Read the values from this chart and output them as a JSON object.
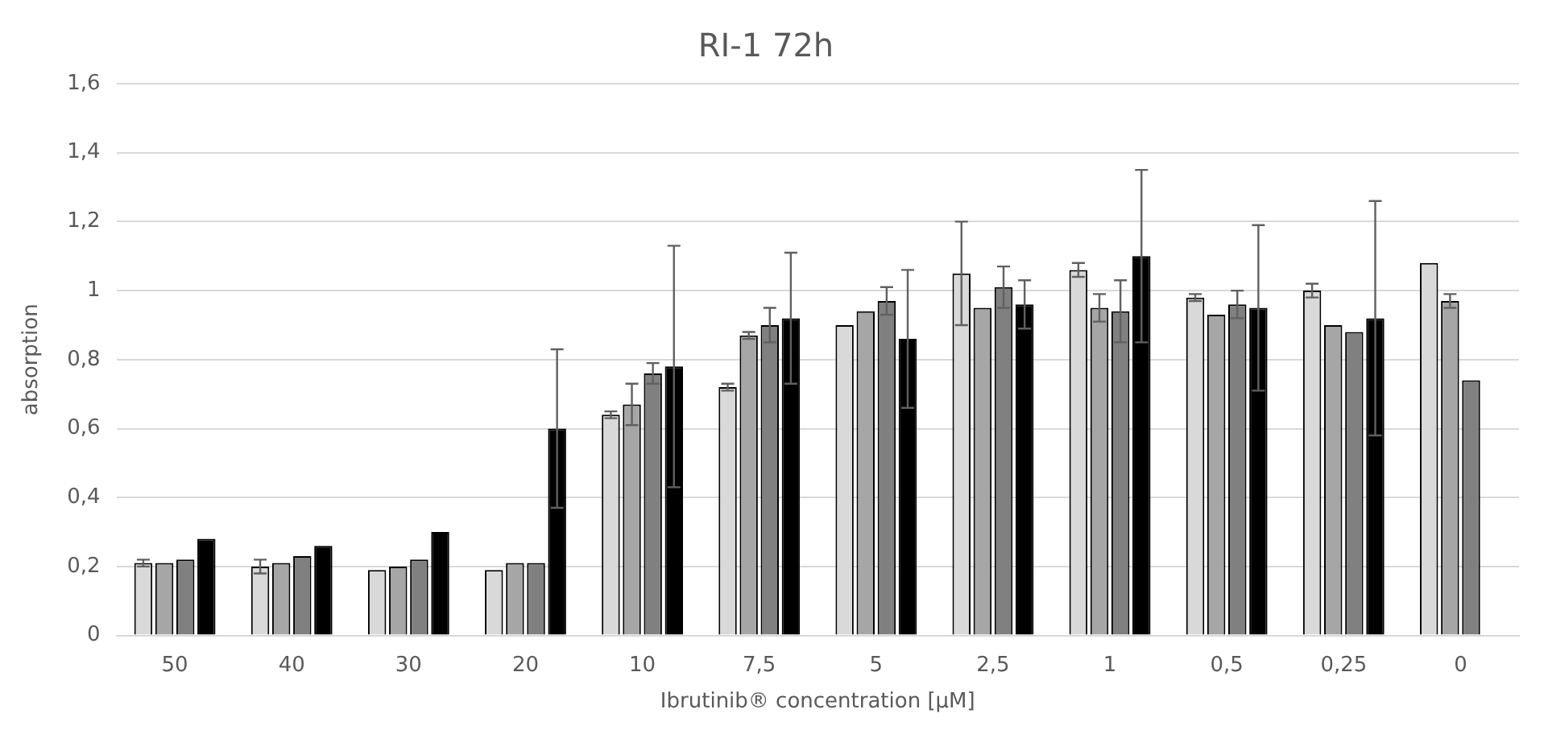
{
  "chart_data": {
    "type": "bar",
    "title": "RI-1 72h",
    "xlabel": "Ibrutinib® concentration [µM]",
    "ylabel": "absorption",
    "categories": [
      "50",
      "40",
      "30",
      "20",
      "10",
      "7,5",
      "5",
      "2,5",
      "1",
      "0,5",
      "0,25",
      "0"
    ],
    "series": [
      {
        "color": "#d9d9d9",
        "values": [
          0.21,
          0.2,
          0.19,
          0.19,
          0.64,
          0.72,
          0.9,
          1.05,
          1.06,
          0.98,
          1.0,
          1.08
        ],
        "errors": [
          0.01,
          0.02,
          null,
          null,
          0.01,
          0.01,
          null,
          0.15,
          0.02,
          0.01,
          0.02,
          null
        ]
      },
      {
        "color": "#a6a6a6",
        "values": [
          0.21,
          0.21,
          0.2,
          0.21,
          0.67,
          0.87,
          0.94,
          0.95,
          0.95,
          0.93,
          0.9,
          0.97
        ],
        "errors": [
          null,
          null,
          null,
          null,
          0.06,
          0.01,
          null,
          null,
          0.04,
          null,
          null,
          0.02
        ]
      },
      {
        "color": "#808080",
        "values": [
          0.22,
          0.23,
          0.22,
          0.21,
          0.76,
          0.9,
          0.97,
          1.01,
          0.94,
          0.96,
          0.88,
          0.74
        ],
        "errors": [
          null,
          null,
          null,
          null,
          0.03,
          0.05,
          0.04,
          0.06,
          0.09,
          0.04,
          null,
          null
        ]
      },
      {
        "color": "#000000",
        "values": [
          0.28,
          0.26,
          0.3,
          0.6,
          0.78,
          0.92,
          0.86,
          0.96,
          1.1,
          0.95,
          0.92,
          null
        ],
        "errors": [
          null,
          null,
          null,
          0.23,
          0.35,
          0.19,
          0.2,
          0.07,
          0.25,
          0.24,
          0.34,
          null
        ]
      }
    ],
    "ylim": [
      0,
      1.6
    ],
    "yticks": [
      0,
      {
        "value": 0.2,
        "label": "0,2"
      },
      {
        "value": 0.4,
        "label": "0,4"
      },
      {
        "value": 0.6,
        "label": "0,6"
      },
      {
        "value": 0.8,
        "label": "0,8"
      },
      1,
      {
        "value": 1.2,
        "label": "1,2"
      },
      {
        "value": 1.4,
        "label": "1,4"
      },
      {
        "value": 1.6,
        "label": "1,6"
      }
    ],
    "grid": "y",
    "legend": false
  }
}
